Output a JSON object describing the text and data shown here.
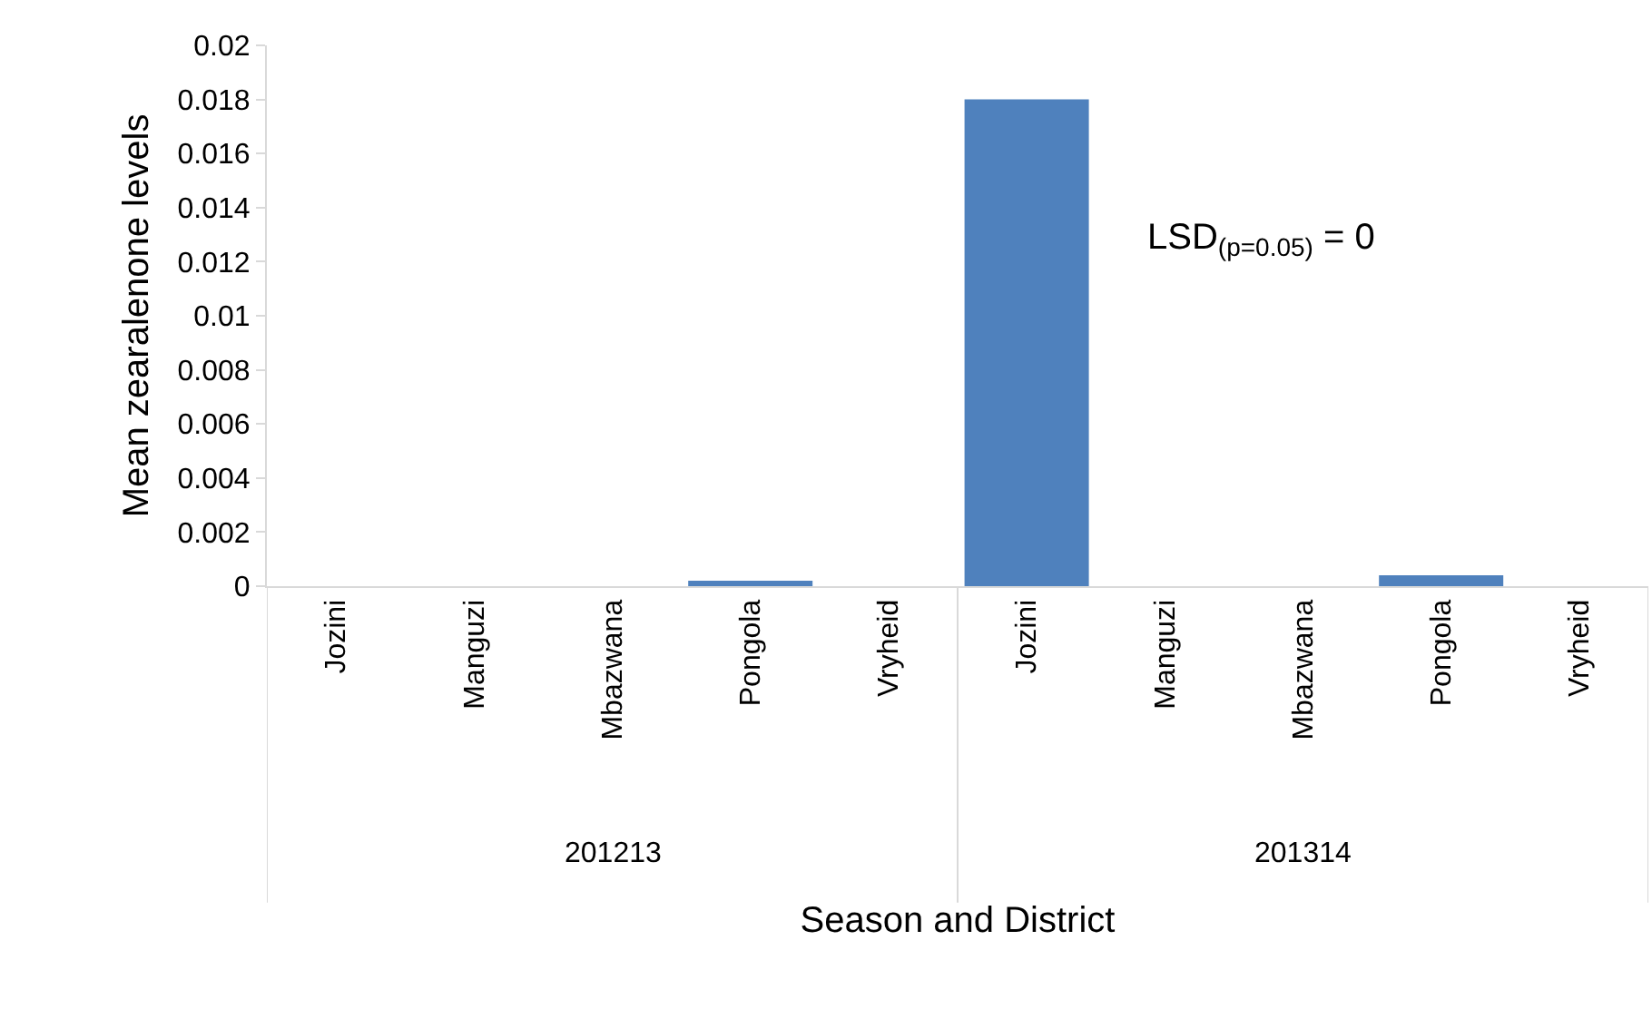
{
  "chart_data": {
    "type": "bar",
    "xlabel": "Season and District",
    "ylabel": "Mean zearalenone levels",
    "categories": [
      "Jozini",
      "Manguzi",
      "Mbazwana",
      "Pongola",
      "Vryheid",
      "Jozini",
      "Manguzi",
      "Mbazwana",
      "Pongola",
      "Vryheid"
    ],
    "values": [
      0,
      0,
      0,
      0.0002,
      0,
      0.018,
      0,
      0,
      0.0004,
      0
    ],
    "color": "#4f81bd",
    "ylim": [
      0,
      0.02
    ],
    "yticks": [
      0,
      0.002,
      0.004,
      0.006,
      0.008,
      0.01,
      0.012,
      0.014,
      0.016,
      0.018,
      0.02
    ],
    "grid": false,
    "legend": false,
    "annotations": [
      "LSD$_{(p=0.05)}$ = 0",
      "201213",
      "201314"
    ]
  }
}
